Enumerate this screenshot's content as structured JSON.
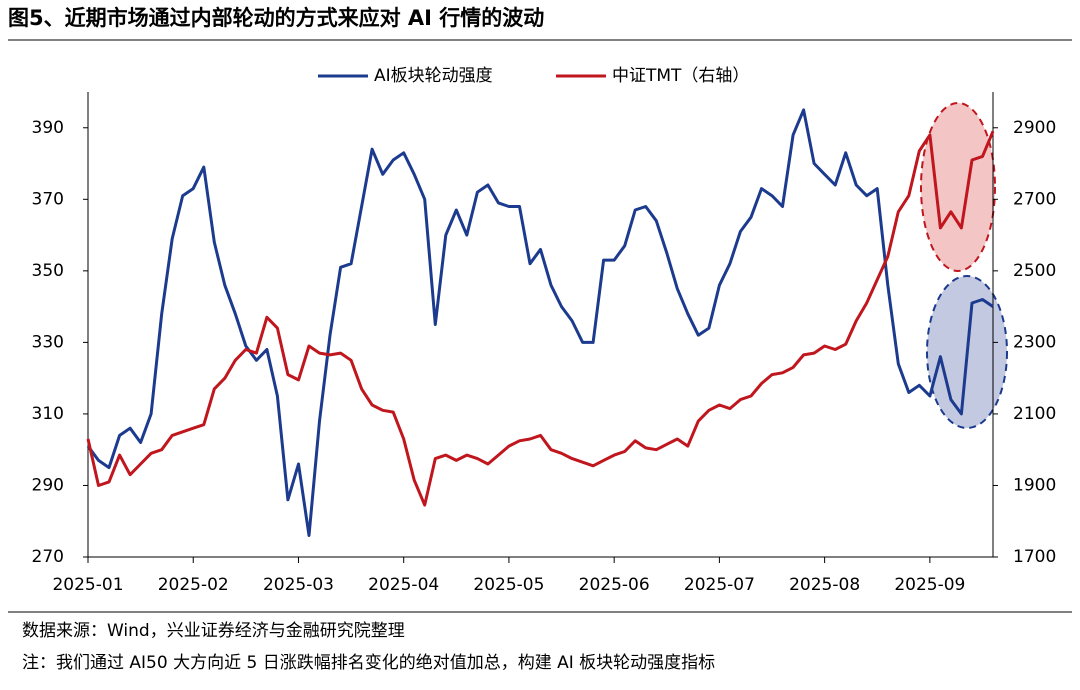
{
  "title": "图5、近期市场通过内部轮动的方式来应对 AI 行情的波动",
  "source": "数据来源：Wind，兴业证券经济与金融研究院整理",
  "note": "注：我们通过 AI50 大方向近 5 日涨跌幅排名变化的绝对值加总，构建 AI 板块轮动强度指标",
  "chart_data": {
    "type": "line",
    "categories": [
      "2025-01",
      null,
      null,
      null,
      null,
      null,
      null,
      null,
      null,
      null,
      "2025-02",
      null,
      null,
      null,
      null,
      null,
      null,
      null,
      null,
      null,
      "2025-03",
      null,
      null,
      null,
      null,
      null,
      null,
      null,
      null,
      null,
      "2025-04",
      null,
      null,
      null,
      null,
      null,
      null,
      null,
      null,
      null,
      "2025-05",
      null,
      null,
      null,
      null,
      null,
      null,
      null,
      null,
      null,
      "2025-06",
      null,
      null,
      null,
      null,
      null,
      null,
      null,
      null,
      null,
      "2025-07",
      null,
      null,
      null,
      null,
      null,
      null,
      null,
      null,
      null,
      "2025-08",
      null,
      null,
      null,
      null,
      null,
      null,
      null,
      null,
      null,
      "2025-09",
      null,
      null,
      null,
      null,
      null,
      null
    ],
    "series": [
      {
        "name": "AI板块轮动强度",
        "color": "#1c3b8e",
        "values": [
          301,
          297,
          295,
          304,
          306,
          302,
          310,
          338,
          359,
          371,
          373,
          379,
          358,
          346,
          338,
          329,
          325,
          328,
          315,
          286,
          296,
          276,
          308,
          332,
          351,
          352,
          368,
          384,
          377,
          381,
          383,
          377,
          370,
          335,
          360,
          367,
          360,
          372,
          374,
          369,
          368,
          368,
          352,
          356,
          346,
          340,
          336,
          330,
          330,
          353,
          353,
          357,
          367,
          368,
          364,
          355,
          345,
          338,
          332,
          334,
          346,
          352,
          361,
          365,
          373,
          371,
          368,
          388,
          395,
          380,
          377,
          374,
          383,
          374,
          371,
          373,
          346,
          324,
          316,
          318,
          315,
          326,
          314,
          310,
          341,
          342,
          340
        ]
      },
      {
        "name": "中证TMT（右轴）",
        "color": "#c0161e",
        "axis": "y2",
        "values": [
          2030,
          1900,
          1910,
          1985,
          1930,
          1960,
          1990,
          2000,
          2040,
          2050,
          2060,
          2070,
          2170,
          2200,
          2250,
          2280,
          2270,
          2370,
          2340,
          2210,
          2195,
          2290,
          2270,
          2265,
          2270,
          2250,
          2170,
          2125,
          2110,
          2105,
          2030,
          1915,
          1845,
          1975,
          1985,
          1970,
          1985,
          1975,
          1960,
          1985,
          2010,
          2025,
          2030,
          2040,
          2000,
          1990,
          1975,
          1965,
          1955,
          1970,
          1985,
          1995,
          2025,
          2005,
          2000,
          2015,
          2030,
          2010,
          2080,
          2110,
          2125,
          2115,
          2140,
          2150,
          2185,
          2210,
          2215,
          2230,
          2265,
          2270,
          2290,
          2280,
          2295,
          2360,
          2410,
          2475,
          2540,
          2665,
          2710,
          2835,
          2880,
          2620,
          2665,
          2620,
          2810,
          2820,
          2890
        ]
      }
    ],
    "ylim": [
      270,
      400
    ],
    "yticks": [
      270,
      290,
      310,
      330,
      350,
      370,
      390
    ],
    "y2lim": [
      1700,
      3000
    ],
    "y2ticks": [
      1700,
      1900,
      2100,
      2300,
      2500,
      2700,
      2900
    ],
    "grid": false,
    "legend": "top"
  }
}
